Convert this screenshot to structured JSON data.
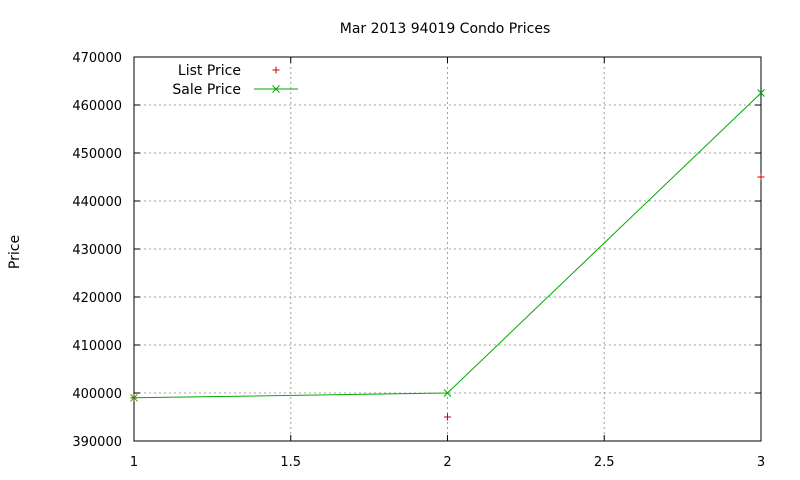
{
  "chart_data": {
    "type": "line",
    "title": "Mar 2013 94019 Condo Prices",
    "xlabel": "",
    "ylabel": "Price",
    "xlim": [
      1,
      3
    ],
    "ylim": [
      390000,
      470000
    ],
    "xticks": [
      "1",
      "1.5",
      "2",
      "2.5",
      "3"
    ],
    "yticks": [
      "390000",
      "400000",
      "410000",
      "420000",
      "430000",
      "440000",
      "450000",
      "460000",
      "470000"
    ],
    "grid": true,
    "legend_position": "top-left",
    "series": [
      {
        "name": "List Price",
        "style": "points",
        "marker": "plus",
        "color": "#cc0000",
        "x": [
          1,
          2,
          3
        ],
        "y": [
          399000,
          395000,
          445000
        ]
      },
      {
        "name": "Sale Price",
        "style": "linespoints",
        "marker": "cross",
        "color": "#00aa00",
        "x": [
          1,
          2,
          3
        ],
        "y": [
          399000,
          400000,
          462500
        ]
      }
    ]
  }
}
